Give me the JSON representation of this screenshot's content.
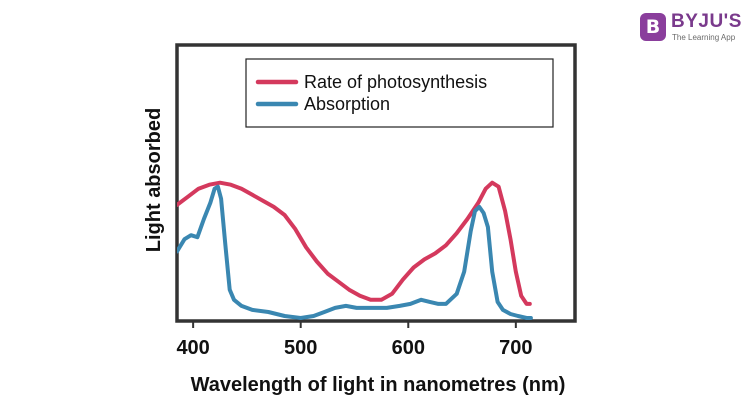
{
  "brand": {
    "mark": "B",
    "name": "BYJU'S",
    "tagline": "The Learning App",
    "color": "#8a3e9c"
  },
  "chart_data": {
    "type": "line",
    "title": "",
    "xlabel": "Wavelength of light in nanometres (nm)",
    "ylabel": "Light absorbed",
    "xlim": [
      385,
      755
    ],
    "ylim": [
      0,
      100
    ],
    "xticks": [
      400,
      500,
      600,
      700
    ],
    "yticks_shown": false,
    "grid": false,
    "legend_position": "top-right",
    "series": [
      {
        "name": "Rate of photosynthesis",
        "color": "#d4395d",
        "x": [
          385,
          395,
          405,
          415,
          425,
          435,
          445,
          455,
          465,
          475,
          485,
          495,
          505,
          515,
          525,
          535,
          545,
          555,
          565,
          575,
          585,
          595,
          605,
          615,
          625,
          635,
          645,
          655,
          665,
          672,
          678,
          684,
          690,
          695,
          700,
          705,
          710,
          713
        ],
        "y": [
          55,
          59,
          63,
          65,
          66,
          65,
          63,
          60,
          57,
          54,
          50,
          43,
          34,
          27,
          21,
          17,
          13,
          10,
          8,
          8,
          11,
          18,
          24,
          28,
          31,
          35,
          41,
          48,
          56,
          63,
          66,
          64,
          52,
          38,
          22,
          10,
          6,
          6
        ]
      },
      {
        "name": "Absorption",
        "color": "#3a87b1",
        "x": [
          385,
          392,
          398,
          404,
          410,
          416,
          420,
          423,
          426,
          430,
          434,
          438,
          445,
          455,
          470,
          485,
          500,
          512,
          522,
          532,
          542,
          552,
          565,
          580,
          592,
          602,
          612,
          620,
          628,
          635,
          645,
          652,
          658,
          662,
          666,
          670,
          674,
          678,
          683,
          688,
          695,
          702,
          710,
          714
        ],
        "y": [
          32,
          38,
          40,
          39,
          48,
          56,
          63,
          64,
          58,
          35,
          13,
          8,
          5,
          3,
          2,
          0,
          -1,
          0,
          2,
          4,
          5,
          4,
          4,
          4,
          5,
          6,
          8,
          7,
          6,
          6,
          11,
          22,
          42,
          52,
          54,
          51,
          44,
          22,
          7,
          3,
          1,
          0,
          -1,
          -1
        ]
      }
    ]
  }
}
